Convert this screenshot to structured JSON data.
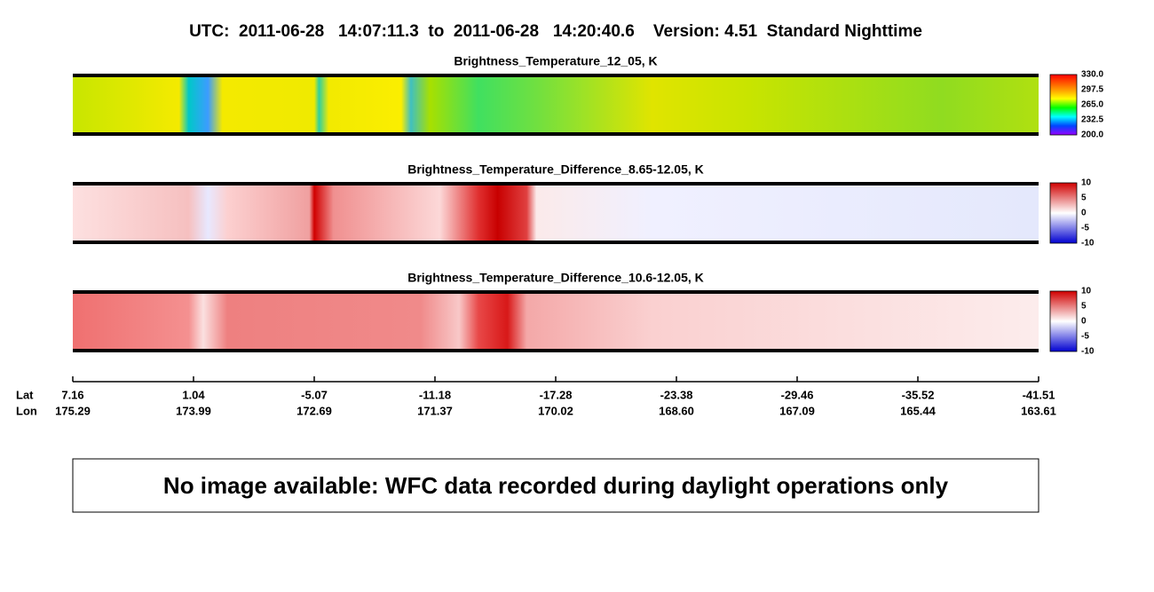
{
  "header": {
    "title": "UTC:  2011-06-28   14:07:11.3  to  2011-06-28   14:20:40.6    Version: 4.51  Standard Nighttime"
  },
  "panels": [
    {
      "title": "Brightness_Temperature_12_05, K",
      "colorbar_labels": [
        "330.0",
        "297.5",
        "265.0",
        "232.5",
        "200.0"
      ]
    },
    {
      "title": "Brightness_Temperature_Difference_8.65-12.05, K",
      "colorbar_labels": [
        "10",
        "5",
        "0",
        "-5",
        "-10"
      ]
    },
    {
      "title": "Brightness_Temperature_Difference_10.6-12.05, K",
      "colorbar_labels": [
        "10",
        "5",
        "0",
        "-5",
        "-10"
      ]
    }
  ],
  "axis": {
    "lat_label": "Lat",
    "lon_label": "Lon",
    "lat": [
      "7.16",
      "1.04",
      "-5.07",
      "-11.18",
      "-17.28",
      "-23.38",
      "-29.46",
      "-35.52",
      "-41.51"
    ],
    "lon": [
      "175.29",
      "173.99",
      "172.69",
      "171.37",
      "170.02",
      "168.60",
      "167.09",
      "165.44",
      "163.61"
    ]
  },
  "message": "No image available: WFC data recorded during daylight operations only"
}
